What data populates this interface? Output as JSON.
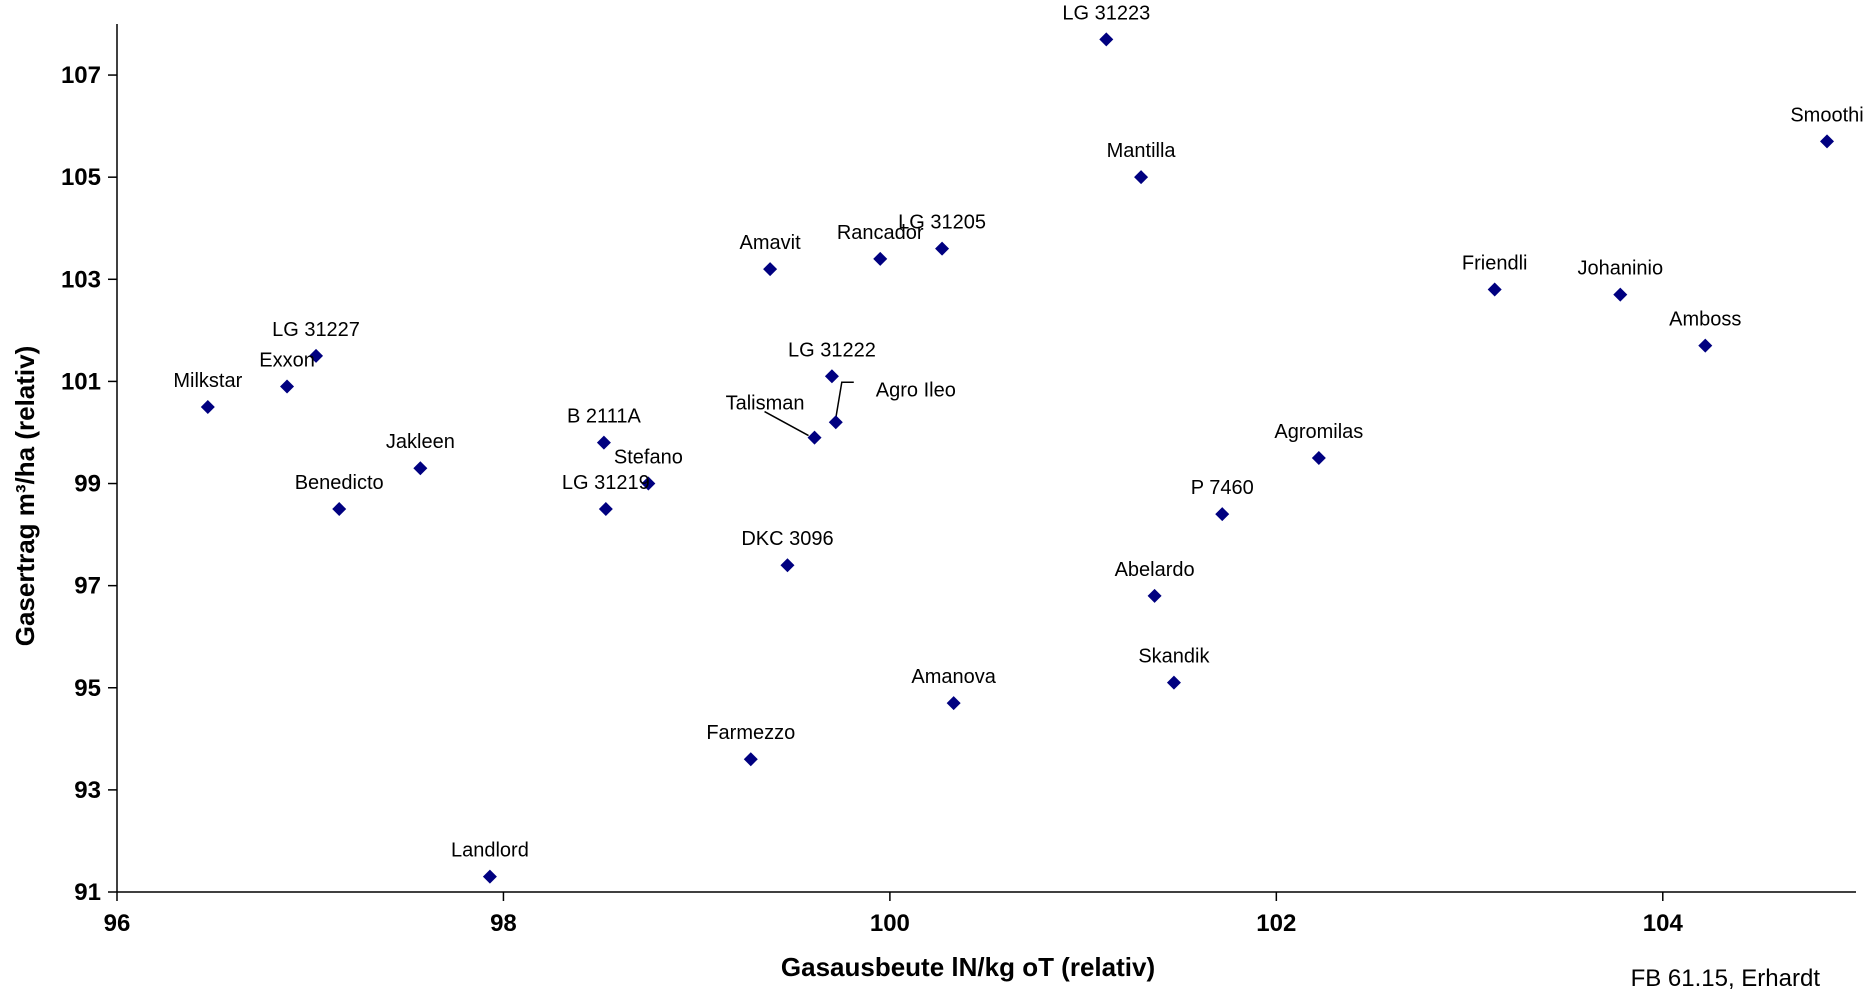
{
  "chart_data": {
    "type": "scatter",
    "xlabel": "Gasausbeute lN/kg oT (relativ)",
    "ylabel": "Gasertrag m³/ha (relativ)",
    "xlim": [
      96,
      105
    ],
    "ylim": [
      91,
      108
    ],
    "xticks": [
      96,
      98,
      100,
      102,
      104
    ],
    "yticks": [
      91,
      93,
      95,
      97,
      99,
      101,
      103,
      105,
      107
    ],
    "grid": false,
    "marker": "diamond",
    "marker_color": "#000080",
    "credit": "FB 61.15, Erhardt",
    "points": [
      {
        "label": "LG 31223",
        "x": 101.12,
        "y": 107.7
      },
      {
        "label": "Smoothi",
        "x": 104.85,
        "y": 105.7
      },
      {
        "label": "Mantilla",
        "x": 101.3,
        "y": 105.0
      },
      {
        "label": "LG 31205",
        "x": 100.27,
        "y": 103.6
      },
      {
        "label": "Rancador",
        "x": 99.95,
        "y": 103.4
      },
      {
        "label": "Amavit",
        "x": 99.38,
        "y": 103.2
      },
      {
        "label": "Friendli",
        "x": 103.13,
        "y": 102.8
      },
      {
        "label": "Johaninio",
        "x": 103.78,
        "y": 102.7
      },
      {
        "label": "Amboss",
        "x": 104.22,
        "y": 101.7
      },
      {
        "label": "LG 31227",
        "x": 97.03,
        "y": 101.5
      },
      {
        "label": "Exxon",
        "x": 96.88,
        "y": 100.9
      },
      {
        "label": "Milkstar",
        "x": 96.47,
        "y": 100.5
      },
      {
        "label": "LG 31222",
        "x": 99.7,
        "y": 101.1
      },
      {
        "label": "Agro Ileo",
        "x": 99.72,
        "y": 100.2
      },
      {
        "label": "Talisman",
        "x": 99.61,
        "y": 99.9
      },
      {
        "label": "B 2111A",
        "x": 98.52,
        "y": 99.8
      },
      {
        "label": "Agromilas",
        "x": 102.22,
        "y": 99.5
      },
      {
        "label": "Jakleen",
        "x": 97.57,
        "y": 99.3
      },
      {
        "label": "Stefano",
        "x": 98.75,
        "y": 99.0
      },
      {
        "label": "LG 31219",
        "x": 98.53,
        "y": 98.5
      },
      {
        "label": "Benedicto",
        "x": 97.15,
        "y": 98.5
      },
      {
        "label": "P 7460",
        "x": 101.72,
        "y": 98.4
      },
      {
        "label": "DKC 3096",
        "x": 99.47,
        "y": 97.4
      },
      {
        "label": "Abelardo",
        "x": 101.37,
        "y": 96.8
      },
      {
        "label": "Skandik",
        "x": 101.47,
        "y": 95.1
      },
      {
        "label": "Amanova",
        "x": 100.33,
        "y": 94.7
      },
      {
        "label": "Farmezzo",
        "x": 99.28,
        "y": 93.6
      },
      {
        "label": "Landlord",
        "x": 97.93,
        "y": 91.3
      }
    ]
  }
}
